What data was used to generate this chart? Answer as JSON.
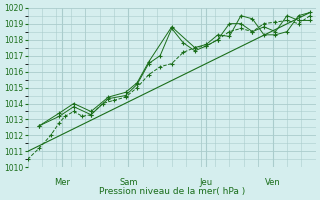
{
  "background_color": "#d5eeee",
  "grid_color": "#aacccc",
  "line_color": "#1a6e1a",
  "marker_color": "#1a6e1a",
  "text_color": "#1a6e1a",
  "xlabel": "Pression niveau de la mer( hPa )",
  "ylim": [
    1010,
    1020
  ],
  "yticks": [
    1010,
    1011,
    1012,
    1013,
    1014,
    1015,
    1016,
    1017,
    1018,
    1019,
    1020
  ],
  "day_labels": [
    "Mer",
    "Sam",
    "Jeu",
    "Ven"
  ],
  "day_positions": [
    0.12,
    0.35,
    0.62,
    0.85
  ],
  "series1": {
    "x": [
      0.0,
      0.04,
      0.08,
      0.11,
      0.13,
      0.16,
      0.19,
      0.22,
      0.26,
      0.3,
      0.34,
      0.38,
      0.42,
      0.46,
      0.5,
      0.54,
      0.58,
      0.62,
      0.66,
      0.7,
      0.74,
      0.78,
      0.82,
      0.86,
      0.9,
      0.94,
      0.98
    ],
    "y": [
      1010.5,
      1011.2,
      1012.0,
      1012.8,
      1013.2,
      1013.5,
      1013.2,
      1013.3,
      1014.0,
      1014.2,
      1014.4,
      1015.0,
      1015.8,
      1016.3,
      1016.5,
      1017.2,
      1017.5,
      1017.6,
      1018.0,
      1018.5,
      1018.7,
      1018.5,
      1019.0,
      1019.1,
      1019.2,
      1019.0,
      1019.5
    ]
  },
  "series2": {
    "x": [
      0.04,
      0.11,
      0.16,
      0.22,
      0.28,
      0.34,
      0.38,
      0.42,
      0.46,
      0.5,
      0.54,
      0.58,
      0.62,
      0.66,
      0.7,
      0.74,
      0.78,
      0.82,
      0.86,
      0.9,
      0.94,
      0.98
    ],
    "y": [
      1012.6,
      1013.2,
      1013.8,
      1013.3,
      1014.3,
      1014.5,
      1015.2,
      1016.5,
      1017.0,
      1018.7,
      1017.8,
      1017.3,
      1017.6,
      1018.0,
      1019.0,
      1019.0,
      1018.5,
      1018.8,
      1018.5,
      1019.5,
      1019.2,
      1019.2
    ]
  },
  "series3": {
    "x": [
      0.04,
      0.11,
      0.16,
      0.22,
      0.28,
      0.34,
      0.38,
      0.42,
      0.5,
      0.58,
      0.62,
      0.66,
      0.7,
      0.74,
      0.78,
      0.82,
      0.86,
      0.9,
      0.94,
      0.98
    ],
    "y": [
      1012.6,
      1013.4,
      1014.0,
      1013.5,
      1014.4,
      1014.7,
      1015.3,
      1016.6,
      1018.8,
      1017.5,
      1017.7,
      1018.3,
      1018.2,
      1019.5,
      1019.3,
      1018.3,
      1018.3,
      1018.5,
      1019.5,
      1019.7
    ]
  },
  "series_linear": {
    "x": [
      0.0,
      0.98
    ],
    "y": [
      1011.0,
      1019.7
    ]
  }
}
